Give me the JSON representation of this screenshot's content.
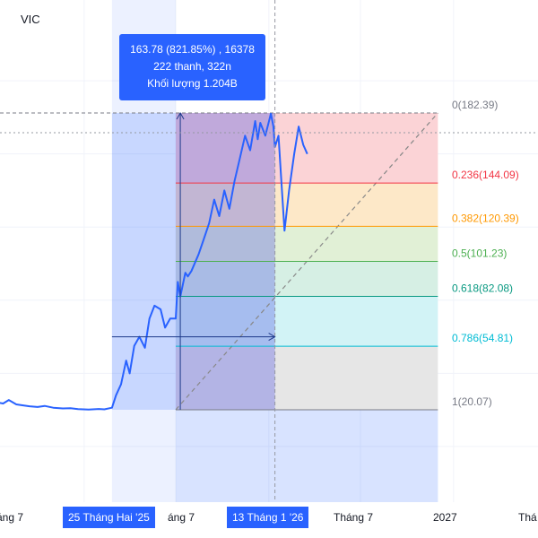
{
  "symbol": "VIC",
  "tooltip": {
    "line1": "163.78 (821.85%) , 16378",
    "line2": "222 thanh, 322n",
    "line3": "Khối lượng 1.204B"
  },
  "x_axis": {
    "labels": [
      "áng 7",
      "áng 7",
      "Tháng 7",
      "2027",
      "Thá"
    ],
    "badges": [
      "25 Tháng Hai '25",
      "13 Tháng 1 '26"
    ]
  },
  "colors": {
    "price_line": "#2962ff",
    "accent": "#2962ff",
    "fib_0": "#787b86",
    "fib_0236": "#f23645",
    "fib_0382": "#ff9800",
    "fib_05": "#4caf50",
    "fib_0618": "#089981",
    "fib_0786": "#00bcd4",
    "fib_1": "#787b86"
  },
  "chart_data": {
    "type": "line",
    "title": "VIC",
    "grid": true,
    "legend": "none",
    "x_range": [
      "2024-05-01",
      "2027-02-01"
    ],
    "y_range": [
      0,
      195
    ],
    "series": [
      {
        "values": [
          [
            "2024-05-01",
            20.5
          ],
          [
            "2024-05-15",
            21.0
          ],
          [
            "2024-06-01",
            20.4
          ],
          [
            "2024-06-15",
            21.3
          ],
          [
            "2024-07-01",
            22.2
          ],
          [
            "2024-07-10",
            27.5
          ],
          [
            "2024-07-15",
            24.0
          ],
          [
            "2024-07-25",
            23.5
          ],
          [
            "2024-08-05",
            25.4
          ],
          [
            "2024-08-20",
            23.0
          ],
          [
            "2024-09-01",
            22.5
          ],
          [
            "2024-09-15",
            22.0
          ],
          [
            "2024-10-01",
            21.6
          ],
          [
            "2024-10-15",
            22.2
          ],
          [
            "2024-11-01",
            21.2
          ],
          [
            "2024-11-20",
            20.8
          ],
          [
            "2024-12-05",
            20.9
          ],
          [
            "2024-12-20",
            20.4
          ],
          [
            "2025-01-10",
            20.2
          ],
          [
            "2025-01-30",
            20.5
          ],
          [
            "2025-02-10",
            20.3
          ],
          [
            "2025-02-25",
            21.2
          ],
          [
            "2025-03-05",
            28.0
          ],
          [
            "2025-03-15",
            34.0
          ],
          [
            "2025-03-25",
            47.0
          ],
          [
            "2025-04-01",
            40.0
          ],
          [
            "2025-04-10",
            55.0
          ],
          [
            "2025-04-20",
            60.0
          ],
          [
            "2025-05-01",
            54.0
          ],
          [
            "2025-05-10",
            70.0
          ],
          [
            "2025-05-20",
            77.0
          ],
          [
            "2025-06-01",
            75.0
          ],
          [
            "2025-06-10",
            65.0
          ],
          [
            "2025-06-20",
            70.0
          ],
          [
            "2025-07-01",
            70.0
          ],
          [
            "2025-07-05",
            90.0
          ],
          [
            "2025-07-10",
            82.0
          ],
          [
            "2025-07-20",
            95.0
          ],
          [
            "2025-07-25",
            93.0
          ],
          [
            "2025-08-01",
            96.0
          ],
          [
            "2025-08-15",
            105.0
          ],
          [
            "2025-08-25",
            113.0
          ],
          [
            "2025-09-05",
            122.0
          ],
          [
            "2025-09-15",
            135.0
          ],
          [
            "2025-09-25",
            126.0
          ],
          [
            "2025-10-05",
            140.0
          ],
          [
            "2025-10-15",
            130.0
          ],
          [
            "2025-10-25",
            145.0
          ],
          [
            "2025-11-05",
            158.0
          ],
          [
            "2025-11-15",
            170.0
          ],
          [
            "2025-11-25",
            162.0
          ],
          [
            "2025-12-05",
            178.0
          ],
          [
            "2025-12-10",
            168.0
          ],
          [
            "2025-12-15",
            177.0
          ],
          [
            "2025-12-25",
            170.0
          ],
          [
            "2026-01-05",
            182.0
          ],
          [
            "2026-01-10",
            175.0
          ],
          [
            "2026-01-13",
            163.78
          ],
          [
            "2026-01-20",
            170.0
          ],
          [
            "2026-01-25",
            148.0
          ],
          [
            "2026-02-01",
            118.0
          ],
          [
            "2026-02-10",
            140.0
          ],
          [
            "2026-02-20",
            160.0
          ],
          [
            "2026-03-01",
            175.0
          ],
          [
            "2026-03-10",
            165.0
          ],
          [
            "2026-03-18",
            160.0
          ]
        ]
      }
    ],
    "fibonacci": [
      {
        "level": "0",
        "value": 182.39,
        "label": "0(182.39)"
      },
      {
        "level": "0.236",
        "value": 144.09,
        "label": "0.236(144.09)"
      },
      {
        "level": "0.382",
        "value": 120.39,
        "label": "0.382(120.39)"
      },
      {
        "level": "0.5",
        "value": 101.23,
        "label": "0.5(101.23)"
      },
      {
        "level": "0.618",
        "value": 82.08,
        "label": "0.618(82.08)"
      },
      {
        "level": "0.786",
        "value": 54.81,
        "label": "0.786(54.81)"
      },
      {
        "level": "1",
        "value": 20.07,
        "label": "1(20.07)"
      }
    ],
    "range_start": "2025-02-25",
    "range_end": "2026-01-13",
    "fib_start": "2025-07-01",
    "fib_end": "2026-12-01",
    "crosshair_price": 163.78,
    "measure_price": 60.0,
    "measure_x": "2025-07-10"
  }
}
